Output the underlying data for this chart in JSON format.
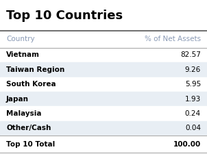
{
  "title": "Top 10 Countries",
  "col1_header": "Country",
  "col2_header": "% of Net Assets",
  "rows": [
    [
      "Vietnam",
      "82.57"
    ],
    [
      "Taiwan Region",
      "9.26"
    ],
    [
      "South Korea",
      "5.95"
    ],
    [
      "Japan",
      "1.93"
    ],
    [
      "Malaysia",
      "0.24"
    ],
    [
      "Other/Cash",
      "0.04"
    ]
  ],
  "total_label": "Top 10 Total",
  "total_value": "100.00",
  "bg_color": "#ffffff",
  "row_alt_color": "#e8eef4",
  "row_base_color": "#ffffff",
  "header_color": "#8a9ab5",
  "title_color": "#000000",
  "data_color": "#000000",
  "total_bg_color": "#ffffff",
  "line_color_dark": "#555555",
  "line_color_light": "#aaaaaa",
  "title_fontsize": 13,
  "header_fontsize": 7.5,
  "data_fontsize": 7.5,
  "total_fontsize": 7.5
}
